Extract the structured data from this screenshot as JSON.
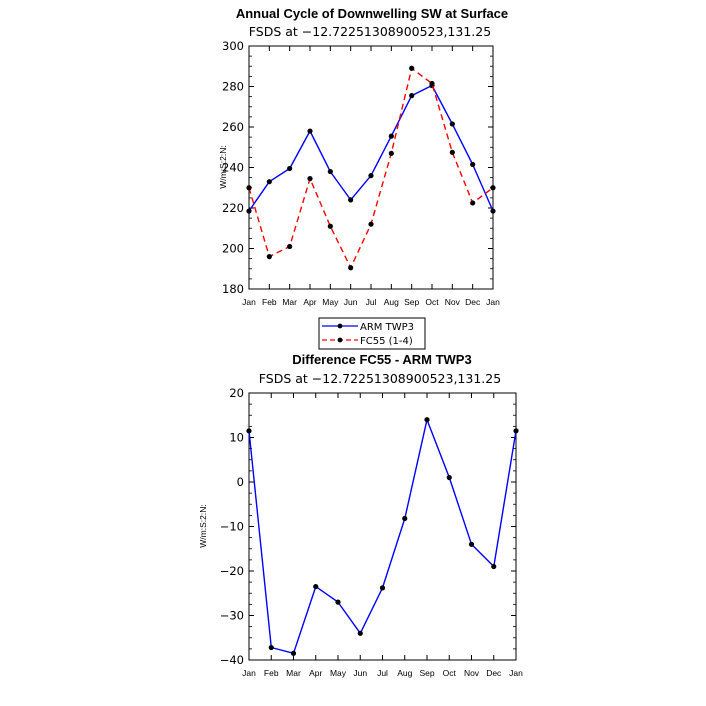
{
  "chart_data": [
    {
      "type": "line",
      "title": "Annual Cycle of Downwelling SW at Surface",
      "subtitle": "FSDS at −12.72251308900523,131.25",
      "ylabel": "W/m:S:2:N:",
      "xlabel": "",
      "categories": [
        "Jan",
        "Feb",
        "Mar",
        "Apr",
        "May",
        "Jun",
        "Jul",
        "Aug",
        "Sep",
        "Oct",
        "Nov",
        "Dec",
        "Jan"
      ],
      "ylim": [
        180,
        300
      ],
      "yticks": [
        180,
        200,
        220,
        240,
        260,
        280,
        300
      ],
      "series": [
        {
          "name": "ARM TWP3",
          "color": "#0000ff",
          "dash": "solid",
          "values": [
            218.5,
            233,
            239.5,
            258,
            238,
            224,
            236,
            255.5,
            275.5,
            280.5,
            261.5,
            241.5,
            218.5
          ]
        },
        {
          "name": "FC55 (1-4)",
          "color": "#ff0000",
          "dash": "dashed",
          "values": [
            230,
            196,
            201,
            234.5,
            211,
            190.5,
            212,
            247,
            289,
            281.5,
            247.5,
            222.5,
            230
          ]
        }
      ],
      "legend": "below"
    },
    {
      "type": "line",
      "title": "Difference FC55 - ARM TWP3",
      "subtitle": "FSDS at −12.72251308900523,131.25",
      "ylabel": "W/m:S:2:N:",
      "xlabel": "",
      "categories": [
        "Jan",
        "Feb",
        "Mar",
        "Apr",
        "May",
        "Jun",
        "Jul",
        "Aug",
        "Sep",
        "Oct",
        "Nov",
        "Dec",
        "Jan"
      ],
      "ylim": [
        -40,
        20
      ],
      "yticks": [
        -40,
        -30,
        -20,
        -10,
        0,
        10,
        20
      ],
      "ytick_labels": [
        "−40",
        "−30",
        "−20",
        "−10",
        "0",
        "10",
        "20"
      ],
      "series": [
        {
          "name": "Difference",
          "color": "#0000ff",
          "dash": "solid",
          "values": [
            11.5,
            -37.2,
            -38.5,
            -23.5,
            -27,
            -34,
            -23.8,
            -8.2,
            14,
            1,
            -14,
            -19,
            11.5
          ]
        }
      ]
    }
  ]
}
